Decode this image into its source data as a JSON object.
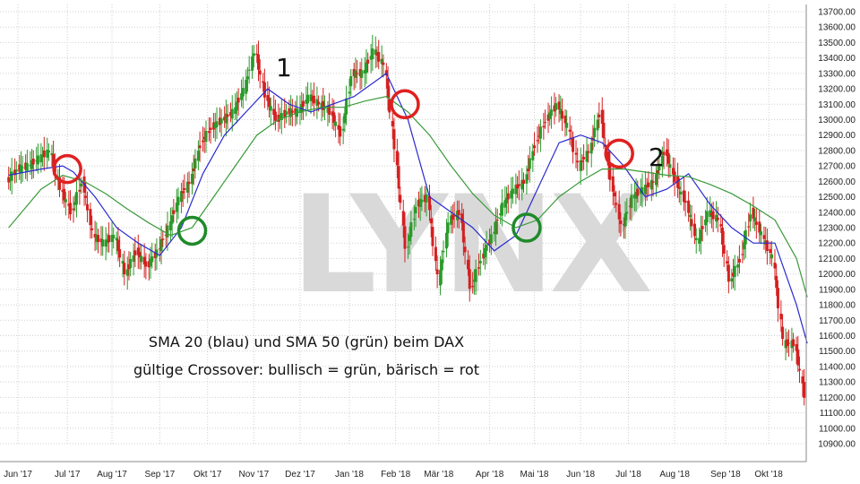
{
  "chart_data": {
    "type": "line",
    "subtype": "candlestick-with-moving-averages",
    "watermark": "LYNX",
    "annotations": [
      "SMA 20 (blau) und SMA 50 (grün) beim DAX",
      "gültige Crossover: bullisch = grün, bärisch = rot"
    ],
    "markers": [
      {
        "label": "1",
        "x": "2017-12-01",
        "y": 13400
      },
      {
        "label": "2",
        "x": "2018-08-08",
        "y": 12750
      }
    ],
    "ylim": [
      10900,
      13700
    ],
    "y_tick_step": 100,
    "y_tick_format": "2 decimals",
    "x_ticks": [
      {
        "label": "Jun '17",
        "date": "2017-06-01"
      },
      {
        "label": "Jul '17",
        "date": "2017-07-03"
      },
      {
        "label": "Aug '17",
        "date": "2017-08-01"
      },
      {
        "label": "Sep '17",
        "date": "2017-09-01"
      },
      {
        "label": "Okt '17",
        "date": "2017-10-02"
      },
      {
        "label": "Nov '17",
        "date": "2017-11-01"
      },
      {
        "label": "Dez '17",
        "date": "2017-12-01"
      },
      {
        "label": "Jan '18",
        "date": "2018-01-02"
      },
      {
        "label": "Feb '18",
        "date": "2018-02-01"
      },
      {
        "label": "Mär '18",
        "date": "2018-03-01"
      },
      {
        "label": "Apr '18",
        "date": "2018-04-03"
      },
      {
        "label": "Mai '18",
        "date": "2018-05-02"
      },
      {
        "label": "Jun '18",
        "date": "2018-06-01"
      },
      {
        "label": "Jul '18",
        "date": "2018-07-02"
      },
      {
        "label": "Aug '18",
        "date": "2018-08-01"
      },
      {
        "label": "Sep '18",
        "date": "2018-09-03"
      },
      {
        "label": "Okt '18",
        "date": "2018-10-01"
      }
    ],
    "x_range": [
      "2017-05-25",
      "2018-10-30"
    ],
    "series": [
      {
        "name": "DAX",
        "kind": "candlestick-approx",
        "points": [
          {
            "x": "2017-05-26",
            "y": 12600
          },
          {
            "x": "2017-06-02",
            "y": 12680
          },
          {
            "x": "2017-06-09",
            "y": 12700
          },
          {
            "x": "2017-06-16",
            "y": 12750
          },
          {
            "x": "2017-06-23",
            "y": 12800
          },
          {
            "x": "2017-06-30",
            "y": 12550
          },
          {
            "x": "2017-07-07",
            "y": 12400
          },
          {
            "x": "2017-07-14",
            "y": 12600
          },
          {
            "x": "2017-07-21",
            "y": 12250
          },
          {
            "x": "2017-07-28",
            "y": 12200
          },
          {
            "x": "2017-08-04",
            "y": 12250
          },
          {
            "x": "2017-08-11",
            "y": 12000
          },
          {
            "x": "2017-08-18",
            "y": 12150
          },
          {
            "x": "2017-08-25",
            "y": 12050
          },
          {
            "x": "2017-09-01",
            "y": 12150
          },
          {
            "x": "2017-09-08",
            "y": 12300
          },
          {
            "x": "2017-09-15",
            "y": 12500
          },
          {
            "x": "2017-09-22",
            "y": 12600
          },
          {
            "x": "2017-09-29",
            "y": 12850
          },
          {
            "x": "2017-10-06",
            "y": 12950
          },
          {
            "x": "2017-10-13",
            "y": 13000
          },
          {
            "x": "2017-10-20",
            "y": 13050
          },
          {
            "x": "2017-10-27",
            "y": 13200
          },
          {
            "x": "2017-11-03",
            "y": 13450
          },
          {
            "x": "2017-11-10",
            "y": 13150
          },
          {
            "x": "2017-11-17",
            "y": 13000
          },
          {
            "x": "2017-11-24",
            "y": 13050
          },
          {
            "x": "2017-12-01",
            "y": 13050
          },
          {
            "x": "2017-12-08",
            "y": 13150
          },
          {
            "x": "2017-12-15",
            "y": 13100
          },
          {
            "x": "2017-12-22",
            "y": 13050
          },
          {
            "x": "2017-12-29",
            "y": 12900
          },
          {
            "x": "2018-01-05",
            "y": 13300
          },
          {
            "x": "2018-01-12",
            "y": 13300
          },
          {
            "x": "2018-01-19",
            "y": 13450
          },
          {
            "x": "2018-01-26",
            "y": 13350
          },
          {
            "x": "2018-02-02",
            "y": 12800
          },
          {
            "x": "2018-02-09",
            "y": 12150
          },
          {
            "x": "2018-02-16",
            "y": 12450
          },
          {
            "x": "2018-02-23",
            "y": 12500
          },
          {
            "x": "2018-03-02",
            "y": 11950
          },
          {
            "x": "2018-03-09",
            "y": 12350
          },
          {
            "x": "2018-03-16",
            "y": 12400
          },
          {
            "x": "2018-03-23",
            "y": 11900
          },
          {
            "x": "2018-03-30",
            "y": 12100
          },
          {
            "x": "2018-04-06",
            "y": 12250
          },
          {
            "x": "2018-04-13",
            "y": 12450
          },
          {
            "x": "2018-04-20",
            "y": 12550
          },
          {
            "x": "2018-04-27",
            "y": 12600
          },
          {
            "x": "2018-05-04",
            "y": 12850
          },
          {
            "x": "2018-05-11",
            "y": 13000
          },
          {
            "x": "2018-05-18",
            "y": 13100
          },
          {
            "x": "2018-05-25",
            "y": 12950
          },
          {
            "x": "2018-06-01",
            "y": 12700
          },
          {
            "x": "2018-06-08",
            "y": 12800
          },
          {
            "x": "2018-06-15",
            "y": 13050
          },
          {
            "x": "2018-06-22",
            "y": 12600
          },
          {
            "x": "2018-06-29",
            "y": 12300
          },
          {
            "x": "2018-07-06",
            "y": 12500
          },
          {
            "x": "2018-07-13",
            "y": 12550
          },
          {
            "x": "2018-07-20",
            "y": 12600
          },
          {
            "x": "2018-07-27",
            "y": 12800
          },
          {
            "x": "2018-08-03",
            "y": 12600
          },
          {
            "x": "2018-08-10",
            "y": 12450
          },
          {
            "x": "2018-08-17",
            "y": 12200
          },
          {
            "x": "2018-08-24",
            "y": 12400
          },
          {
            "x": "2018-08-31",
            "y": 12350
          },
          {
            "x": "2018-09-07",
            "y": 11950
          },
          {
            "x": "2018-09-14",
            "y": 12100
          },
          {
            "x": "2018-09-21",
            "y": 12400
          },
          {
            "x": "2018-09-28",
            "y": 12250
          },
          {
            "x": "2018-10-05",
            "y": 12100
          },
          {
            "x": "2018-10-12",
            "y": 11550
          },
          {
            "x": "2018-10-19",
            "y": 11550
          },
          {
            "x": "2018-10-26",
            "y": 11200
          }
        ]
      },
      {
        "name": "SMA 20",
        "color": "#2a2ad0",
        "points": [
          {
            "x": "2017-05-26",
            "y": 12640
          },
          {
            "x": "2017-06-16",
            "y": 12680
          },
          {
            "x": "2017-06-30",
            "y": 12700
          },
          {
            "x": "2017-07-07",
            "y": 12660
          },
          {
            "x": "2017-07-21",
            "y": 12500
          },
          {
            "x": "2017-08-04",
            "y": 12300
          },
          {
            "x": "2017-08-18",
            "y": 12200
          },
          {
            "x": "2017-09-01",
            "y": 12120
          },
          {
            "x": "2017-09-15",
            "y": 12300
          },
          {
            "x": "2017-09-29",
            "y": 12650
          },
          {
            "x": "2017-10-13",
            "y": 12900
          },
          {
            "x": "2017-10-27",
            "y": 13050
          },
          {
            "x": "2017-11-10",
            "y": 13200
          },
          {
            "x": "2017-11-24",
            "y": 13100
          },
          {
            "x": "2017-12-08",
            "y": 13050
          },
          {
            "x": "2017-12-22",
            "y": 13100
          },
          {
            "x": "2018-01-05",
            "y": 13150
          },
          {
            "x": "2018-01-19",
            "y": 13250
          },
          {
            "x": "2018-01-26",
            "y": 13300
          },
          {
            "x": "2018-02-09",
            "y": 13000
          },
          {
            "x": "2018-02-23",
            "y": 12500
          },
          {
            "x": "2018-03-09",
            "y": 12400
          },
          {
            "x": "2018-03-23",
            "y": 12300
          },
          {
            "x": "2018-04-06",
            "y": 12150
          },
          {
            "x": "2018-04-20",
            "y": 12250
          },
          {
            "x": "2018-05-04",
            "y": 12550
          },
          {
            "x": "2018-05-18",
            "y": 12850
          },
          {
            "x": "2018-06-01",
            "y": 12900
          },
          {
            "x": "2018-06-15",
            "y": 12850
          },
          {
            "x": "2018-06-29",
            "y": 12700
          },
          {
            "x": "2018-07-13",
            "y": 12500
          },
          {
            "x": "2018-07-27",
            "y": 12550
          },
          {
            "x": "2018-08-10",
            "y": 12650
          },
          {
            "x": "2018-08-24",
            "y": 12450
          },
          {
            "x": "2018-09-07",
            "y": 12300
          },
          {
            "x": "2018-09-21",
            "y": 12200
          },
          {
            "x": "2018-10-05",
            "y": 12200
          },
          {
            "x": "2018-10-19",
            "y": 11800
          },
          {
            "x": "2018-10-26",
            "y": 11550
          }
        ]
      },
      {
        "name": "SMA 50",
        "color": "#3a9a3a",
        "points": [
          {
            "x": "2017-05-26",
            "y": 12300
          },
          {
            "x": "2017-06-16",
            "y": 12550
          },
          {
            "x": "2017-06-30",
            "y": 12640
          },
          {
            "x": "2017-07-14",
            "y": 12600
          },
          {
            "x": "2017-07-28",
            "y": 12520
          },
          {
            "x": "2017-08-11",
            "y": 12420
          },
          {
            "x": "2017-08-25",
            "y": 12330
          },
          {
            "x": "2017-09-08",
            "y": 12250
          },
          {
            "x": "2017-09-22",
            "y": 12300
          },
          {
            "x": "2017-10-06",
            "y": 12500
          },
          {
            "x": "2017-10-20",
            "y": 12700
          },
          {
            "x": "2017-11-03",
            "y": 12900
          },
          {
            "x": "2017-11-17",
            "y": 13000
          },
          {
            "x": "2017-12-01",
            "y": 13050
          },
          {
            "x": "2017-12-15",
            "y": 13080
          },
          {
            "x": "2017-12-29",
            "y": 13080
          },
          {
            "x": "2018-01-12",
            "y": 13120
          },
          {
            "x": "2018-01-26",
            "y": 13150
          },
          {
            "x": "2018-02-09",
            "y": 13050
          },
          {
            "x": "2018-02-23",
            "y": 12900
          },
          {
            "x": "2018-03-09",
            "y": 12700
          },
          {
            "x": "2018-03-23",
            "y": 12520
          },
          {
            "x": "2018-04-06",
            "y": 12380
          },
          {
            "x": "2018-04-20",
            "y": 12300
          },
          {
            "x": "2018-05-04",
            "y": 12350
          },
          {
            "x": "2018-05-18",
            "y": 12500
          },
          {
            "x": "2018-06-01",
            "y": 12600
          },
          {
            "x": "2018-06-15",
            "y": 12680
          },
          {
            "x": "2018-06-29",
            "y": 12680
          },
          {
            "x": "2018-07-13",
            "y": 12660
          },
          {
            "x": "2018-07-27",
            "y": 12640
          },
          {
            "x": "2018-08-10",
            "y": 12630
          },
          {
            "x": "2018-08-24",
            "y": 12580
          },
          {
            "x": "2018-09-07",
            "y": 12520
          },
          {
            "x": "2018-09-21",
            "y": 12440
          },
          {
            "x": "2018-10-05",
            "y": 12350
          },
          {
            "x": "2018-10-19",
            "y": 12100
          },
          {
            "x": "2018-10-26",
            "y": 11850
          }
        ]
      }
    ],
    "crossovers": [
      {
        "type": "bearish",
        "color": "#e02020",
        "date": "2017-07-03",
        "y": 12680
      },
      {
        "type": "bullish",
        "color": "#1f8a2a",
        "date": "2017-09-22",
        "y": 12280
      },
      {
        "type": "bearish",
        "color": "#e02020",
        "date": "2018-02-07",
        "y": 13100
      },
      {
        "type": "bullish",
        "color": "#1f8a2a",
        "date": "2018-04-27",
        "y": 12300
      },
      {
        "type": "bearish",
        "color": "#e02020",
        "date": "2018-06-26",
        "y": 12780
      }
    ],
    "grid": true,
    "colors": {
      "up": "#2a9a2a",
      "down": "#d42020",
      "grid": "#d0d0d0"
    }
  }
}
